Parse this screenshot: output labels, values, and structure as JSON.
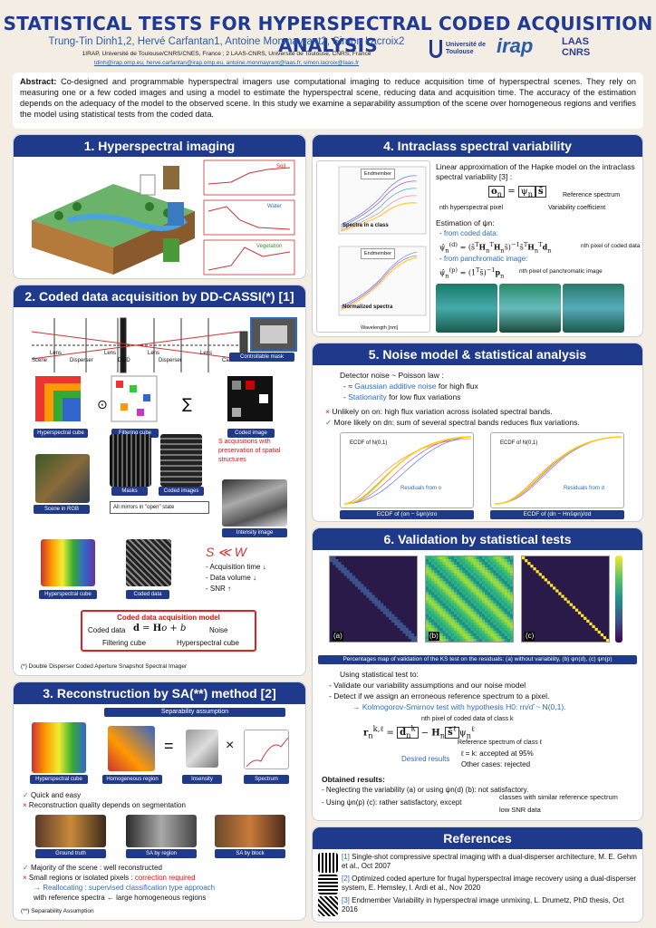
{
  "title": "STATISTICAL TESTS FOR HYPERSPECTRAL CODED ACQUISITION ANALYSIS",
  "authors": "Trung-Tin Dinh1,2, Hervé Carfantan1, Antoine Monmayrant2, Simon Lacroix2",
  "affiliations": "1IRAP, Université de Toulouse/CNRS/CNES, France ; 2 LAAS-CNRS, Université de Toulouse, CNRS, France",
  "emails": "tdinh@irap.omp.eu, herve.carfantan@irap.omp.eu, antoine.monmayrant@laas.fr, simon.lacroix@laas.fr",
  "logos": {
    "ut": "Université de Toulouse",
    "irap": "irap",
    "laas": "LAAS CNRS"
  },
  "abstract_label": "Abstract:",
  "abstract": "Co-designed and programmable hyperspectral imagers use computational imaging to reduce acquisition time of hyperspectral scenes. They rely on measuring one or a few coded images and using a model to estimate the hyperspectral scene, reducing data and acquisition time. The accuracy of the estimation depends on the adequacy of the model to the observed scene. In this study we examine a separability assumption of the scene over homogeneous regions and verifies the model using statistical tests from the coded data.",
  "s1": {
    "title": "1. Hyperspectral imaging",
    "soil": "Soil",
    "water": "Water",
    "vegetation": "Vegetation",
    "wavelength": "Wavelength",
    "amplitude": "Amplitude"
  },
  "s2": {
    "title": "2. Coded data acquisition by DD-CASSI(*) [1]",
    "scene": "Scene",
    "lens1": "Lens",
    "disperser1": "Disperser",
    "lens2": "Lens",
    "dmd": "DMD",
    "lens3": "Lens",
    "disperser2": "Disperser",
    "lens4": "Lens",
    "camera": "Camera",
    "ctrl_mask": "Controllable mask",
    "hcube": "Hyperspectral cube",
    "fcube": "Filtering cube",
    "coded_image": "Coded image",
    "scene_rgb": "Scene in RGB",
    "masks": "Masks",
    "coded_images": "Coded images",
    "acq_text": "S acquisitions with preservation of spatial structures",
    "all_mirrors": "All mirrors in \"open\" state",
    "intensity": "Intensity image",
    "hcube2": "Hyperspectral cube",
    "coded_data": "Coded data",
    "s_ll_w": "S ≪ W",
    "acq_time": "- Acquisition time ↓",
    "data_vol": "- Data volume ↓",
    "snr": "- SNR ↑",
    "model_title": "Coded data acquisition model",
    "model_cd": "Coded data",
    "model_noise": "Noise",
    "model_fc": "Filtering cube",
    "model_hc": "Hyperspectral cube",
    "footnote": "(*) Double Disperser Coded Aperture Snapshot Spectral Imager"
  },
  "s3": {
    "title": "3. Reconstruction by SA(**) method [2]",
    "sep": "Separability assumption",
    "hcube": "Hyperspectral cube",
    "homog": "Homogeneous region",
    "insensity": "Insensity",
    "spectrum": "Spectrum",
    "pro1": "Quick and easy",
    "con1": "Reconstruction quality depends on segmentation",
    "gt": "Ground truth",
    "sa_region": "SA by region",
    "sa_block": "SA by block",
    "pro2": "Majority of the scene : well reconstructed",
    "con2": "Small regions or isolated pixels :",
    "con2b": "correction required",
    "realloc": "→ Reallocating : supervised classification type approach",
    "realloc2": "with reference spectra ← large homogeneous regions",
    "footnote": "(**) Separability Assumption"
  },
  "s4": {
    "title": "4. Intraclass spectral variability",
    "endmember": "Endmember",
    "spectra_class": "Spectra in a class",
    "normalized": "Normalized spectra",
    "wavelength_axis": "Wavelength [nm]",
    "xticks": [
      "425",
      "452",
      "484",
      "525",
      "578",
      "649"
    ],
    "yticks": [
      "1200",
      "1000",
      "800",
      "600",
      "400",
      "200"
    ],
    "yticks2": [
      "1.4",
      "1.2",
      "1.0",
      "0.8",
      "0.6",
      "0.4",
      "0.2"
    ],
    "hapke": "Linear approximation of the Hapke model on the intraclass spectral variability [3] :",
    "ref_spec": "Reference spectrum",
    "nth_pixel": "nth hyperspectral pixel",
    "var_coef": "Variability coefficient",
    "estimation": "Estimation of ψn:",
    "from_coded": "from coded data:",
    "nth_coded": "nth pixel of coded data",
    "from_pan": "from panchromatic image:",
    "nth_pan": "nth pixel of panchromatic image"
  },
  "s5": {
    "title": "5. Noise model & statistical analysis",
    "detector": "Detector noise ~ Poisson law :",
    "gauss": "Gaussian additive noise",
    "gauss2": "for high flux",
    "station": "Stationarity",
    "station2": "for low flux variations",
    "unlikely": "Unlikely on on: high flux variation across isolated spectral bands.",
    "likely": "More likely on dn: sum of several spectral bands reduces flux variations.",
    "ecdf": "ECDF of N(0,1)",
    "resid_o": "Residuals from o",
    "resid_d": "Residuals from d",
    "ecdf_o": "ECDF of (on − s̄ψn)/σo",
    "ecdf_d": "ECDF of (dn − Hns̄ψn)/σd"
  },
  "s6": {
    "title": "6. Validation by statistical tests",
    "caption": "Percentages map of validation of the KS test on the residuals: (a) without variability, (b) ψn(d), (c) ψn(p)",
    "using": "Using statistical test to:",
    "v1": "Validate our variability assumptions and our noise model",
    "v2": "Detect if we assign an erroneous reference spectrum to a pixel.",
    "ks": "→ Kolmogorov-Smirnov test with hypothesis H0: rn/σ̂ ~ N(0,1).",
    "coded_k": "nth pixel of coded data of class k",
    "ref_l": "Reference spectrum of class ℓ",
    "desired": "Desired results",
    "d1": "ℓ = k: accepted at 95%",
    "d2": "Other cases: rejected",
    "obtained": "Obtained results:",
    "o1": "Neglecting the variability (a) or using ψn(d) (b): not satisfactory.",
    "o2": "Using ψn(p) (c): rather satisfactory, except",
    "o2a": "classes with similar reference spectrum",
    "o2b": "low SNR data",
    "xt": [
      "10",
      "20",
      "30"
    ],
    "yt": [
      "5",
      "10",
      "15",
      "20",
      "25",
      "30"
    ],
    "cbar": [
      "100",
      "90",
      "80",
      "70",
      "60",
      "50",
      "40",
      "30",
      "20",
      "10",
      "0"
    ],
    "labels": [
      "(a)",
      "(b)",
      "(c)"
    ]
  },
  "refs": {
    "title": "References",
    "r1n": "[1]",
    "r1": "Single-shot compressive spectral imaging with a dual-disperser architecture, M. E. Gehm et al., Oct 2007",
    "r2n": "[2]",
    "r2": "Optimized coded aperture for frugal hyperspectral image recovery using a dual-disperser system, E. Hemsley, I. Ardi et al., Nov 2020",
    "r3n": "[3]",
    "r3": "Endmember Variability in hyperspectral image unmixing, L. Drumetz, PhD thesis, Oct 2016"
  },
  "colors": {
    "header": "#1f3a8a",
    "accent": "#2a6cc0",
    "bg": "#f4ede3"
  }
}
